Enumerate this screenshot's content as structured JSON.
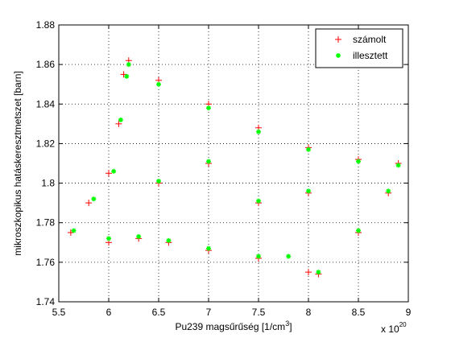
{
  "chart_data": {
    "type": "scatter",
    "title": "",
    "xlabel": "Pu239  magsűrűség [1/cm",
    "xlabel_sup": "3",
    "xlabel_tail": "]",
    "x_multiplier_base": "x 10",
    "x_multiplier_exp": "20",
    "ylabel": "mikroszkopikus hatáskeresztmetszet [barn]",
    "xlim": [
      5.5,
      9.0
    ],
    "ylim": [
      1.74,
      1.88
    ],
    "xticks": [
      5.5,
      6,
      6.5,
      7,
      7.5,
      8,
      8.5,
      9
    ],
    "xtick_labels": [
      "5.5",
      "6",
      "6.5",
      "7",
      "7.5",
      "8",
      "8.5",
      "9"
    ],
    "yticks": [
      1.74,
      1.76,
      1.78,
      1.8,
      1.82,
      1.84,
      1.86,
      1.88
    ],
    "ytick_labels": [
      "1.74",
      "1.76",
      "1.78",
      "1.8",
      "1.82",
      "1.84",
      "1.86",
      "1.88"
    ],
    "grid": true,
    "legend_position": "top-right",
    "series": [
      {
        "name": "számolt",
        "marker": "+",
        "color": "#ff0000",
        "values": [
          [
            6.2,
            1.862
          ],
          [
            6.5,
            1.852
          ],
          [
            7.0,
            1.84
          ],
          [
            7.5,
            1.828
          ],
          [
            8.0,
            1.818
          ],
          [
            8.5,
            1.812
          ],
          [
            8.9,
            1.81
          ],
          [
            5.62,
            1.775
          ],
          [
            5.8,
            1.79
          ],
          [
            6.0,
            1.805
          ],
          [
            6.1,
            1.83
          ],
          [
            6.15,
            1.855
          ],
          [
            6.0,
            1.77
          ],
          [
            6.3,
            1.772
          ],
          [
            6.6,
            1.77
          ],
          [
            7.0,
            1.766
          ],
          [
            7.5,
            1.762
          ],
          [
            8.0,
            1.755
          ],
          [
            8.1,
            1.754
          ],
          [
            8.5,
            1.775
          ],
          [
            8.8,
            1.795
          ],
          [
            6.5,
            1.8
          ],
          [
            7.0,
            1.81
          ],
          [
            7.5,
            1.79
          ],
          [
            8.0,
            1.795
          ]
        ]
      },
      {
        "name": "illesztett",
        "marker": "*",
        "color": "#00ff00",
        "values": [
          [
            6.2,
            1.86
          ],
          [
            6.5,
            1.85
          ],
          [
            7.0,
            1.838
          ],
          [
            7.5,
            1.826
          ],
          [
            8.0,
            1.817
          ],
          [
            8.5,
            1.811
          ],
          [
            8.9,
            1.809
          ],
          [
            5.65,
            1.776
          ],
          [
            5.85,
            1.792
          ],
          [
            6.05,
            1.806
          ],
          [
            6.12,
            1.832
          ],
          [
            6.18,
            1.854
          ],
          [
            6.0,
            1.772
          ],
          [
            6.3,
            1.773
          ],
          [
            6.6,
            1.771
          ],
          [
            7.0,
            1.767
          ],
          [
            7.5,
            1.763
          ],
          [
            7.8,
            1.763
          ],
          [
            8.1,
            1.755
          ],
          [
            8.5,
            1.776
          ],
          [
            8.8,
            1.796
          ],
          [
            6.5,
            1.801
          ],
          [
            7.0,
            1.811
          ],
          [
            7.5,
            1.791
          ],
          [
            8.0,
            1.796
          ]
        ]
      }
    ]
  },
  "colors": {
    "axes_background": "#ffffff",
    "grid": "#000000",
    "computed": "#ff0000",
    "fitted": "#00ff00"
  }
}
